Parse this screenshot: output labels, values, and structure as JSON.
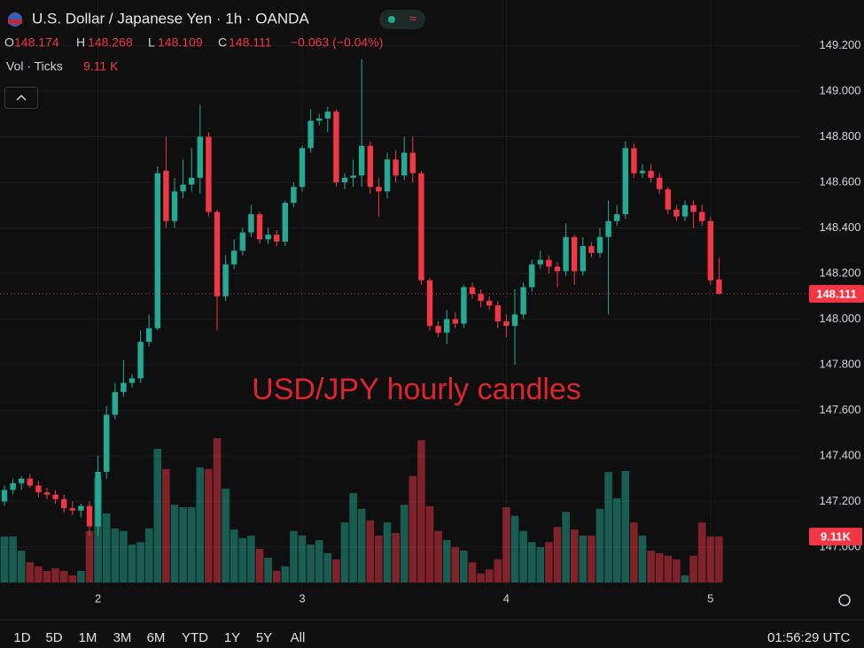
{
  "chart_data": {
    "type": "candlestick",
    "title": "U.S. Dollar / Japanese Yen · 1h · OANDA",
    "ohlc_keys": [
      "O",
      "H",
      "L",
      "C"
    ],
    "change": "−0.063 (−0.04%)",
    "annotation": "USD/JPY hourly candles",
    "up_color": "#22ab94",
    "down_color": "#f23645",
    "grid": true,
    "categories": [
      null,
      null,
      null,
      null,
      null,
      null,
      null,
      null,
      null,
      null,
      null,
      "2",
      null,
      null,
      null,
      null,
      null,
      null,
      null,
      null,
      null,
      null,
      null,
      null,
      null,
      null,
      null,
      null,
      null,
      null,
      null,
      null,
      null,
      null,
      null,
      "3",
      null,
      null,
      null,
      null,
      null,
      null,
      null,
      null,
      null,
      null,
      null,
      null,
      null,
      null,
      null,
      null,
      null,
      null,
      null,
      null,
      null,
      null,
      null,
      "4",
      null,
      null,
      null,
      null,
      null,
      null,
      null,
      null,
      null,
      null,
      null,
      null,
      null,
      null,
      null,
      null,
      null,
      null,
      null,
      null,
      null,
      null,
      null,
      "5",
      null
    ],
    "open": [
      147.2,
      147.25,
      147.28,
      147.3,
      147.27,
      147.24,
      147.23,
      147.21,
      147.17,
      147.16,
      147.18,
      147.09,
      147.33,
      147.58,
      147.68,
      147.72,
      147.74,
      147.9,
      147.96,
      148.65,
      148.43,
      148.56,
      148.59,
      148.62,
      148.8,
      148.47,
      148.1,
      148.24,
      148.3,
      148.38,
      148.46,
      148.35,
      148.37,
      148.34,
      148.51,
      148.58,
      148.75,
      148.87,
      148.88,
      148.91,
      148.6,
      148.62,
      148.63,
      148.76,
      148.58,
      148.56,
      148.7,
      148.63,
      148.73,
      148.64,
      148.17,
      147.97,
      147.94,
      148.0,
      147.98,
      148.14,
      148.11,
      148.08,
      148.06,
      147.99,
      147.97,
      148.02,
      148.14,
      148.24,
      148.26,
      148.23,
      148.21,
      148.36,
      148.21,
      148.32,
      148.29,
      148.36,
      148.43,
      148.46,
      148.75,
      148.64,
      148.65,
      148.62,
      148.57,
      148.48,
      148.45,
      148.5,
      148.47,
      148.43,
      148.174
    ],
    "high": [
      147.27,
      147.3,
      147.31,
      147.32,
      147.29,
      147.26,
      147.25,
      147.23,
      147.2,
      147.19,
      147.2,
      147.4,
      147.62,
      147.72,
      147.82,
      147.76,
      147.95,
      148.02,
      148.67,
      148.8,
      148.62,
      148.7,
      148.75,
      148.94,
      148.82,
      148.48,
      148.28,
      148.35,
      148.4,
      148.5,
      148.47,
      148.4,
      148.39,
      148.52,
      148.6,
      148.76,
      148.92,
      148.9,
      148.93,
      148.92,
      148.64,
      148.7,
      149.14,
      148.78,
      148.62,
      148.73,
      148.74,
      148.8,
      148.8,
      148.65,
      148.18,
      147.99,
      148.04,
      148.03,
      148.15,
      148.16,
      148.13,
      148.1,
      148.08,
      148.02,
      148.13,
      148.16,
      148.26,
      148.3,
      148.28,
      148.25,
      148.42,
      148.37,
      148.36,
      148.34,
      148.4,
      148.52,
      148.5,
      148.78,
      148.77,
      148.68,
      148.68,
      148.64,
      148.58,
      148.5,
      148.52,
      148.52,
      148.5,
      148.45,
      148.268
    ],
    "low": [
      147.18,
      147.23,
      147.25,
      147.26,
      147.22,
      147.21,
      147.19,
      147.15,
      147.14,
      147.13,
      147.05,
      147.05,
      147.3,
      147.56,
      147.66,
      147.7,
      147.72,
      147.88,
      147.95,
      148.4,
      148.4,
      148.53,
      148.56,
      148.55,
      148.45,
      147.95,
      148.08,
      148.22,
      148.28,
      148.36,
      148.33,
      148.33,
      148.32,
      148.32,
      148.49,
      148.56,
      148.73,
      148.85,
      148.82,
      148.58,
      148.57,
      148.58,
      148.58,
      148.55,
      148.45,
      148.53,
      148.6,
      148.61,
      148.6,
      148.15,
      147.95,
      147.92,
      147.89,
      147.96,
      147.96,
      148.09,
      148.05,
      148.04,
      147.96,
      147.92,
      147.8,
      148.0,
      148.12,
      148.22,
      148.2,
      148.14,
      148.19,
      148.15,
      148.19,
      148.27,
      148.27,
      148.02,
      148.41,
      148.44,
      148.62,
      148.62,
      148.6,
      148.55,
      148.46,
      148.43,
      148.43,
      148.4,
      148.41,
      148.15,
      148.109
    ],
    "close": [
      147.25,
      147.28,
      147.3,
      147.27,
      147.24,
      147.23,
      147.21,
      147.17,
      147.16,
      147.18,
      147.09,
      147.33,
      147.58,
      147.68,
      147.72,
      147.74,
      147.9,
      147.96,
      148.64,
      148.43,
      148.56,
      148.59,
      148.62,
      148.8,
      148.47,
      148.1,
      148.24,
      148.3,
      148.38,
      148.46,
      148.35,
      148.37,
      148.34,
      148.51,
      148.58,
      148.75,
      148.87,
      148.88,
      148.91,
      148.6,
      148.62,
      148.63,
      148.76,
      148.58,
      148.56,
      148.7,
      148.63,
      148.73,
      148.64,
      148.17,
      147.97,
      147.94,
      148.0,
      147.98,
      148.14,
      148.11,
      148.08,
      148.06,
      147.99,
      147.97,
      148.02,
      148.14,
      148.24,
      148.26,
      148.23,
      148.21,
      148.36,
      148.21,
      148.32,
      148.29,
      148.36,
      148.43,
      148.46,
      148.75,
      148.64,
      148.65,
      148.62,
      148.57,
      148.48,
      148.45,
      148.5,
      148.47,
      148.43,
      148.17,
      148.111
    ],
    "ylim": [
      146.817,
      149.4
    ],
    "yticks": [
      {
        "value": 147.0,
        "label": "147.000"
      },
      {
        "value": 147.2,
        "label": "147.200"
      },
      {
        "value": 147.4,
        "label": "147.400"
      },
      {
        "value": 147.6,
        "label": "147.600"
      },
      {
        "value": 147.8,
        "label": "147.800"
      },
      {
        "value": 148.0,
        "label": "148.000"
      },
      {
        "value": 148.2,
        "label": "148.200"
      },
      {
        "value": 148.4,
        "label": "148.400"
      },
      {
        "value": 148.6,
        "label": "148.600"
      },
      {
        "value": 148.8,
        "label": "148.800"
      },
      {
        "value": 149.0,
        "label": "149.000"
      },
      {
        "value": 149.2,
        "label": "149.200"
      }
    ],
    "volume": {
      "name": "Vol · Ticks",
      "legend_value_label": "9.11 K",
      "axis_value_label": "9.11K",
      "values": [
        9.1,
        9.1,
        6.3,
        4.0,
        3.2,
        2.3,
        2.8,
        2.3,
        1.4,
        2.3,
        10.2,
        20.7,
        13.7,
        10.7,
        10.2,
        7.5,
        8.0,
        10.7,
        26.5,
        22.5,
        15.4,
        14.9,
        14.9,
        22.8,
        22.5,
        28.6,
        18.6,
        10.5,
        8.8,
        9.3,
        6.7,
        4.9,
        2.3,
        3.2,
        10.2,
        9.3,
        7.5,
        8.4,
        5.8,
        4.6,
        11.9,
        17.7,
        14.6,
        12.3,
        9.3,
        11.9,
        9.8,
        15.4,
        21.1,
        28.2,
        15.1,
        10.2,
        8.4,
        7.0,
        6.3,
        4.0,
        1.8,
        2.6,
        4.6,
        14.9,
        13.2,
        10.2,
        8.0,
        7.0,
        8.0,
        11.0,
        14.0,
        10.5,
        9.3,
        9.3,
        14.6,
        21.9,
        16.7,
        22.1,
        11.9,
        9.3,
        6.3,
        5.8,
        5.3,
        4.6,
        1.4,
        5.3,
        11.9,
        9.1,
        9.11
      ]
    }
  },
  "toolbar": {
    "ranges": [
      "1D",
      "5D",
      "1M",
      "3M",
      "6M",
      "YTD",
      "1Y",
      "5Y",
      "All"
    ],
    "clock": "01:56:29 UTC"
  }
}
